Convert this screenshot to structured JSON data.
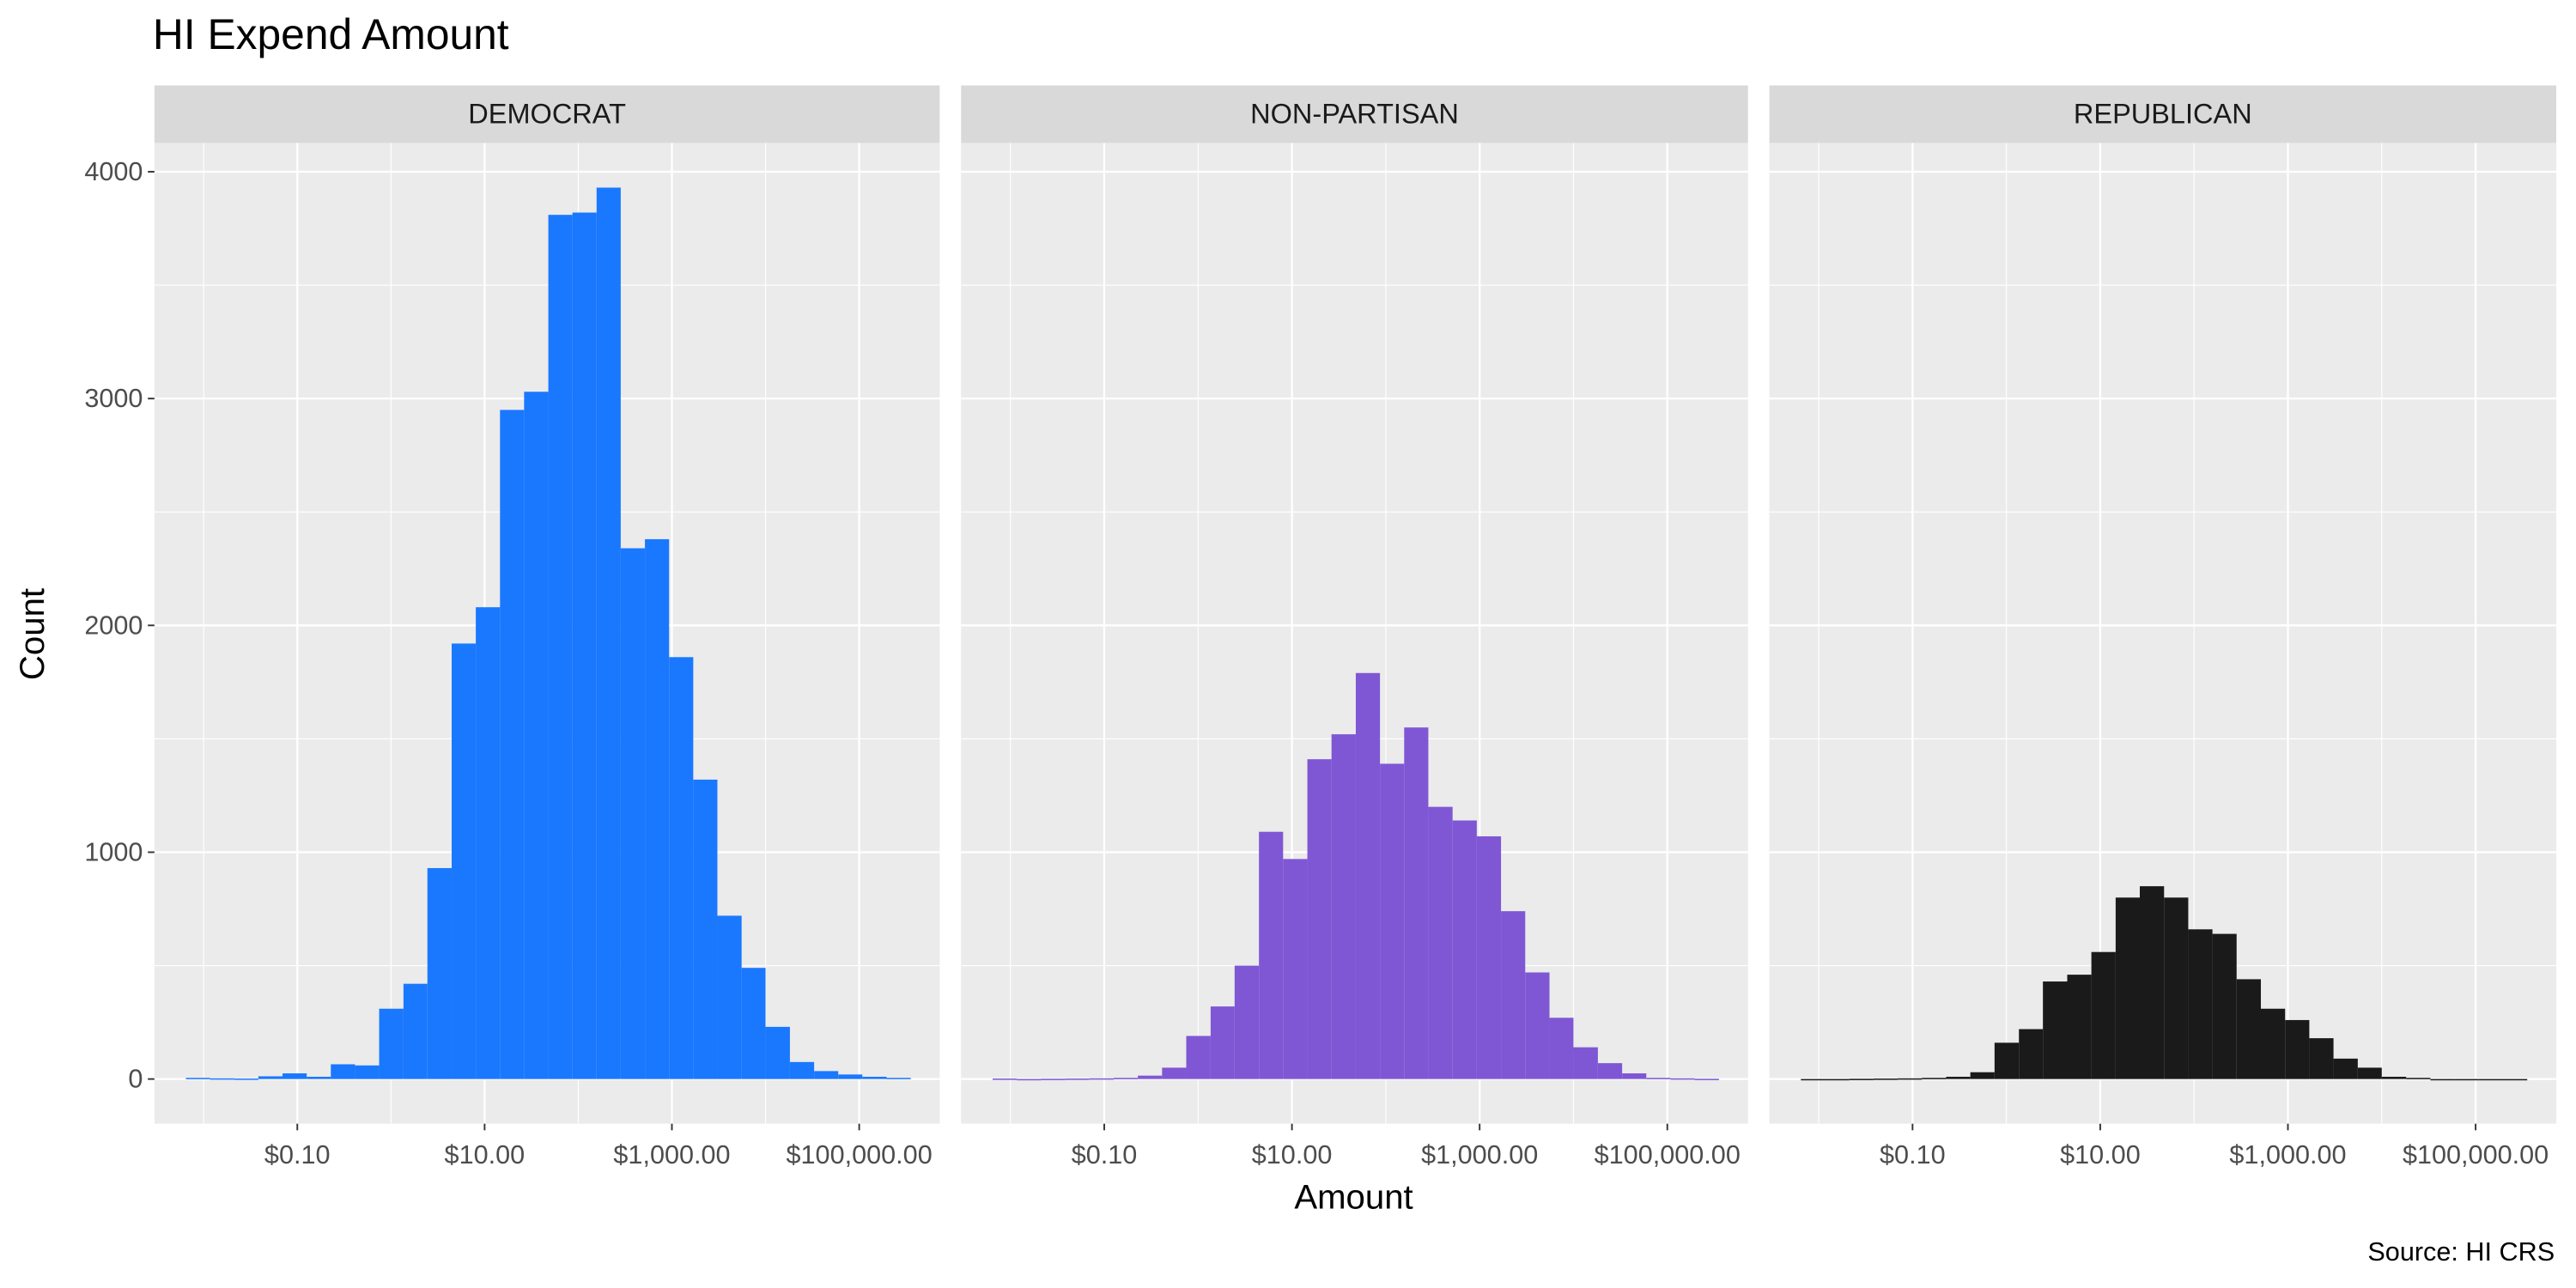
{
  "chart_data": {
    "type": "histogram",
    "title": "HI Expend Amount",
    "x_label": "Amount",
    "y_label": "Count",
    "caption": "Source: HI CRS",
    "x_scale": "log",
    "grid": true,
    "bins": [
      0.00646,
      0.0117,
      0.0212,
      0.0384,
      0.0695,
      0.126,
      0.228,
      0.413,
      0.748,
      1.36,
      2.45,
      4.45,
      8.05,
      14.6,
      26.4,
      47.9,
      86.7,
      157,
      284,
      515,
      933,
      1690,
      3060,
      5550,
      10000,
      18200,
      33000,
      59700,
      108000,
      196000,
      355000
    ],
    "series": [
      {
        "name": "DEMOCRAT",
        "color": "#1a78ff",
        "values": [
          5,
          3,
          2,
          12,
          25,
          10,
          65,
          60,
          310,
          420,
          930,
          1920,
          2080,
          2950,
          3030,
          3810,
          3820,
          3930,
          2340,
          2380,
          1860,
          1320,
          720,
          490,
          230,
          75,
          35,
          20,
          10,
          5
        ]
      },
      {
        "name": "NON-PARTISAN",
        "color": "#7f57d4",
        "values": [
          2,
          0,
          1,
          2,
          3,
          5,
          15,
          50,
          190,
          320,
          500,
          1090,
          970,
          1410,
          1520,
          1790,
          1390,
          1550,
          1200,
          1140,
          1070,
          740,
          470,
          270,
          140,
          70,
          25,
          5,
          3,
          1
        ]
      },
      {
        "name": "REPUBLICAN",
        "color": "#1a1a1a",
        "values": [
          0,
          0,
          1,
          2,
          3,
          5,
          10,
          30,
          160,
          220,
          430,
          460,
          560,
          800,
          850,
          800,
          660,
          640,
          440,
          310,
          260,
          180,
          90,
          50,
          10,
          5,
          0,
          0,
          0,
          0
        ]
      }
    ],
    "xlim": [
      0.00298,
      724000
    ],
    "xticks": [
      {
        "value": 0.1,
        "label": "$0.10"
      },
      {
        "value": 10,
        "label": "$10.00"
      },
      {
        "value": 1000,
        "label": "$1,000.00"
      },
      {
        "value": 100000,
        "label": "$100,000.00"
      }
    ],
    "ylim": [
      -197,
      4127
    ],
    "yticks": [
      0,
      1000,
      2000,
      3000,
      4000
    ]
  }
}
